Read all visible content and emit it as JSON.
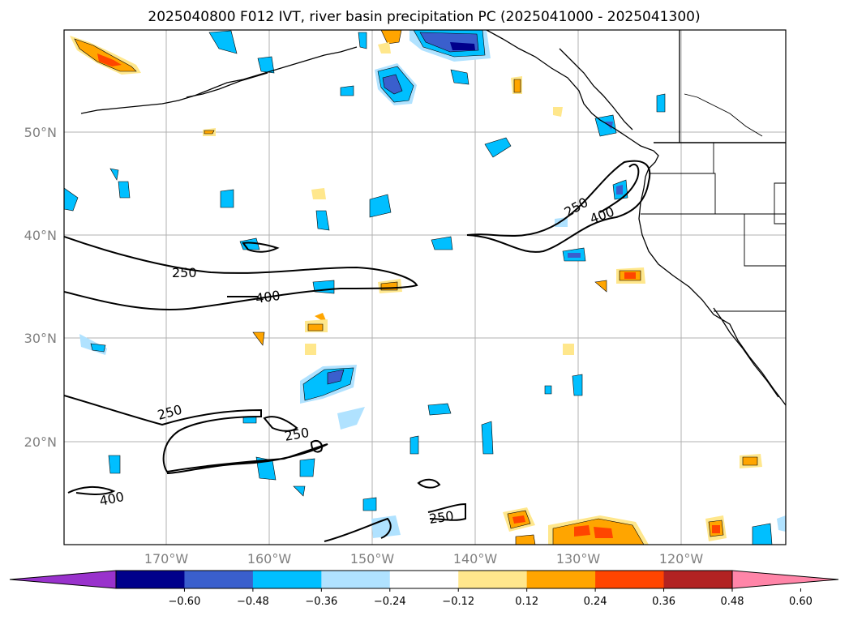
{
  "title": "2025040800 F012 IVT, river basin precipitation PC (2025041000 - 2025041300)",
  "lat_labels": [
    "50°N",
    "40°N",
    "30°N",
    "20°N"
  ],
  "lon_labels": [
    "170°W",
    "160°W",
    "150°W",
    "140°W",
    "130°W",
    "120°W"
  ],
  "colorbar": {
    "colors": [
      "#9932cc",
      "#00008b",
      "#3a5fcd",
      "#00bfff",
      "#b0e2ff",
      "#ffffff",
      "#ffe78c",
      "#ffa500",
      "#ff4500",
      "#b22222",
      "#ff85a8"
    ],
    "ticks": [
      "−0.60",
      "−0.48",
      "−0.36",
      "−0.24",
      "−0.12",
      "0.12",
      "0.24",
      "0.36",
      "0.48",
      "0.60"
    ]
  },
  "contour_labels": [
    "250",
    "400",
    "250",
    "400",
    "250",
    "250",
    "400",
    "250"
  ],
  "colors": {
    "land_line": "#000000",
    "grid": "#b0b0b0",
    "neg_light": "#b0e2ff",
    "neg_mid": "#00bfff",
    "neg_strong": "#3a5fcd",
    "neg_max": "#00008b",
    "pos_light": "#ffe78c",
    "pos_mid": "#ffa500",
    "pos_strong": "#ff4500"
  }
}
